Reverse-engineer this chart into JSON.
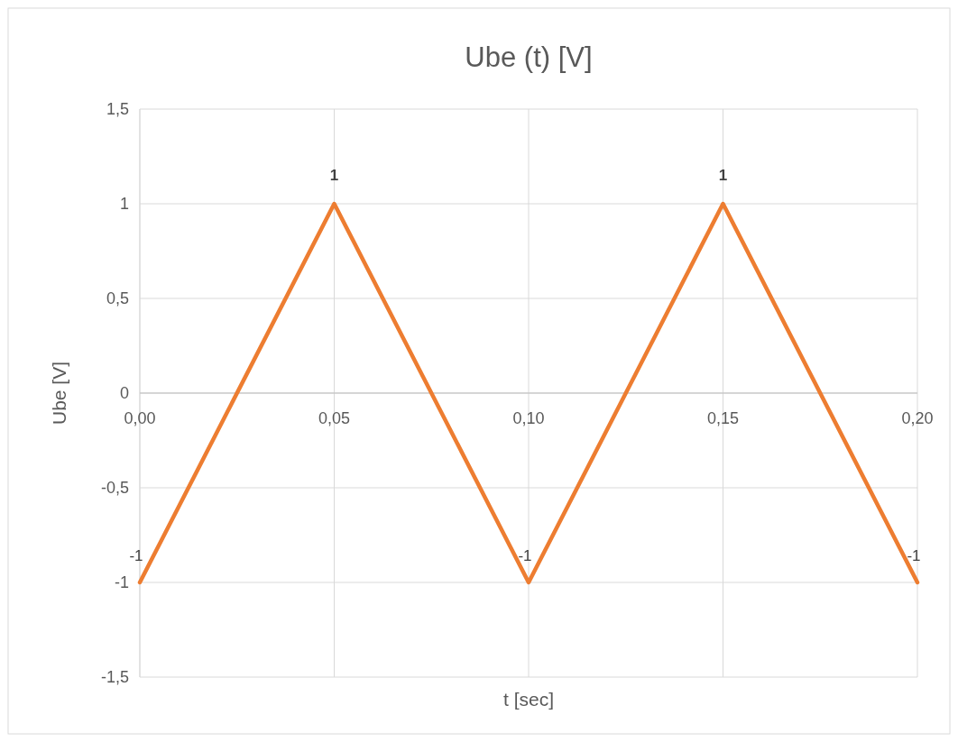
{
  "chart_data": {
    "type": "line",
    "title": "Ube (t) [V]",
    "xlabel": "t [sec]",
    "ylabel": "Ube [V]",
    "x": [
      0,
      0.05,
      0.1,
      0.15,
      0.2
    ],
    "series": [
      {
        "color": "#ed7d31",
        "values": [
          -1,
          1,
          -1,
          1,
          -1
        ]
      }
    ],
    "xlim": [
      0,
      0.2
    ],
    "xticks": [
      {
        "value": 0,
        "label": "0,00"
      },
      {
        "value": 0.05,
        "label": "0,05"
      },
      {
        "value": 0.1,
        "label": "0,10"
      },
      {
        "value": 0.15,
        "label": "0,15"
      },
      {
        "value": 0.2,
        "label": "0,20"
      }
    ],
    "ylim": [
      -1.5,
      1.5
    ],
    "yticks": [
      {
        "value": -1.5,
        "label": "-1,5"
      },
      -1,
      {
        "value": -0.5,
        "label": "-0,5"
      },
      0,
      {
        "value": 0.5,
        "label": "0,5"
      },
      1,
      {
        "value": 1.5,
        "label": "1,5"
      }
    ],
    "grid": true,
    "data_labels": true,
    "marker": "none",
    "line_style": "solid"
  }
}
